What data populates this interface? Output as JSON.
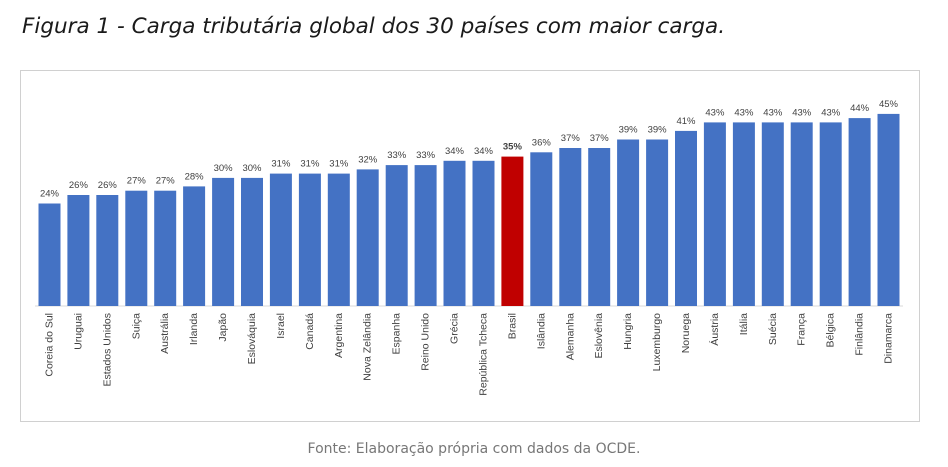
{
  "title": "Figura 1 - Carga tributária global dos 30 países com maior carga.",
  "source": "Fonte: Elaboração própria com dados da OCDE.",
  "colors": {
    "default_bar": "#4472C4",
    "highlight_bar": "#C00000",
    "label": "#404040",
    "axis": "#d9d9d9"
  },
  "chart_data": {
    "type": "bar",
    "title": "",
    "xlabel": "",
    "ylabel": "",
    "ylim": [
      0,
      45
    ],
    "grid": false,
    "categories": [
      "Coreia do Sul",
      "Uruguai",
      "Estados Unidos",
      "Suiça",
      "Austrália",
      "Irlanda",
      "Japão",
      "Eslováquia",
      "Israel",
      "Canadá",
      "Argentina",
      "Nova Zelândia",
      "Espanha",
      "Reino Unido",
      "Grécia",
      "República Tcheca",
      "Brasil",
      "Islândia",
      "Alemanha",
      "Eslovênia",
      "Hungria",
      "Luxemburgo",
      "Noruega",
      "Áustria",
      "Itália",
      "Suécia",
      "França",
      "Bélgica",
      "Finlândia",
      "Dinamarca"
    ],
    "values": [
      24,
      26,
      26,
      27,
      27,
      28,
      30,
      30,
      31,
      31,
      31,
      32,
      33,
      33,
      34,
      34,
      35,
      36,
      37,
      37,
      39,
      39,
      41,
      43,
      43,
      43,
      43,
      43,
      44,
      45
    ],
    "value_labels": [
      "24%",
      "26%",
      "26%",
      "27%",
      "27%",
      "28%",
      "30%",
      "30%",
      "31%",
      "31%",
      "31%",
      "32%",
      "33%",
      "33%",
      "34%",
      "34%",
      "35%",
      "36%",
      "37%",
      "37%",
      "39%",
      "39%",
      "41%",
      "43%",
      "43%",
      "43%",
      "43%",
      "43%",
      "44%",
      "45%"
    ],
    "highlight": "Brasil"
  }
}
